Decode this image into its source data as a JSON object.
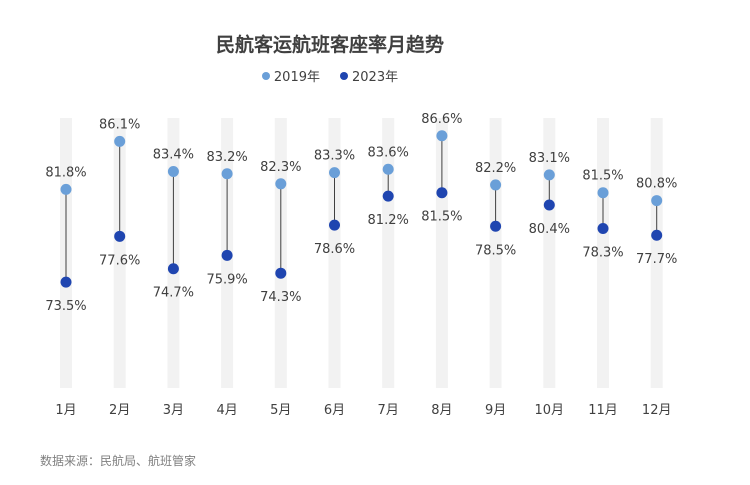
{
  "title": "民航客运航班客座率月趋势",
  "source": "数据来源：民航局、航班管家",
  "colors": {
    "series_2019": "#6a9fd8",
    "series_2023": "#1f45b0",
    "band": "#f2f2f2",
    "connector": "#404040"
  },
  "chart_data": {
    "type": "dumbbell",
    "categories": [
      "1月",
      "2月",
      "3月",
      "4月",
      "5月",
      "6月",
      "7月",
      "8月",
      "9月",
      "10月",
      "11月",
      "12月"
    ],
    "series": [
      {
        "name": "2019年",
        "values": [
          81.8,
          86.1,
          83.4,
          83.2,
          82.3,
          83.3,
          83.6,
          86.6,
          82.2,
          83.1,
          81.5,
          80.8
        ]
      },
      {
        "name": "2023年",
        "values": [
          73.5,
          77.6,
          74.7,
          75.9,
          74.3,
          78.6,
          81.2,
          81.5,
          78.5,
          80.4,
          78.3,
          77.7
        ]
      }
    ],
    "value_labels": {
      "2019年": [
        "81.8%",
        "86.1%",
        "83.4%",
        "83.2%",
        "82.3%",
        "83.3%",
        "83.6%",
        "86.6%",
        "82.2%",
        "83.1%",
        "81.5%",
        "80.8%"
      ],
      "2023年": [
        "73.5%",
        "77.6%",
        "74.7%",
        "75.9%",
        "74.3%",
        "78.6%",
        "81.2%",
        "81.5%",
        "78.5%",
        "80.4%",
        "78.3%",
        "77.7%"
      ]
    },
    "ylim": [
      63.4,
      89.8
    ],
    "xlabel": "",
    "ylabel": "",
    "legend_position": "top-center",
    "grid": false
  }
}
